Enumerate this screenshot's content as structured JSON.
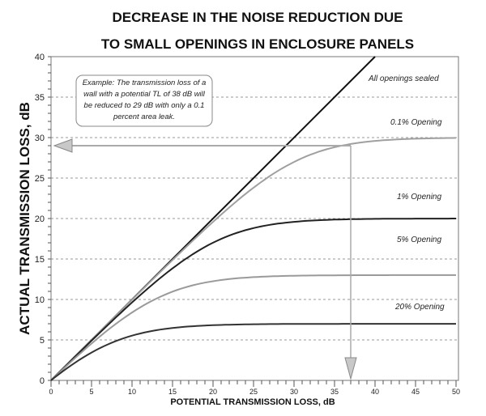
{
  "chart_data": {
    "type": "line",
    "title": [
      "DECREASE IN THE NOISE REDUCTION DUE",
      "TO SMALL OPENINGS IN ENCLOSURE PANELS"
    ],
    "xlabel": "POTENTIAL TRANSMISSION LOSS, dB",
    "ylabel": "ACTUAL TRANSMISSION LOSS, dB",
    "xlim": [
      0,
      50
    ],
    "ylim": [
      0,
      40
    ],
    "xticks": [
      0,
      5,
      10,
      15,
      20,
      25,
      30,
      35,
      40,
      45,
      50
    ],
    "yticks": [
      0,
      5,
      10,
      15,
      20,
      25,
      30,
      35,
      40
    ],
    "grid": "horizontal dashed at each y tick",
    "x": [
      0,
      5,
      10,
      15,
      20,
      25,
      30,
      35,
      40,
      45,
      50
    ],
    "series": [
      {
        "name": "All openings sealed",
        "color": "#111111",
        "x": [
          0,
          40
        ],
        "values": [
          0,
          40
        ]
      },
      {
        "name": "0.1% Opening",
        "color": "#a0a0a0",
        "values": [
          0,
          5.0,
          10.0,
          14.9,
          19.6,
          23.8,
          27.0,
          28.8,
          29.6,
          29.9,
          30.0
        ]
      },
      {
        "name": "1% Opening",
        "color": "#222222",
        "values": [
          0,
          4.9,
          9.6,
          13.8,
          17.0,
          18.8,
          19.6,
          19.9,
          20.0,
          20.0,
          20.0
        ]
      },
      {
        "name": "5% Opening",
        "color": "#9a9a9a",
        "values": [
          0,
          4.4,
          8.2,
          10.9,
          12.2,
          12.7,
          12.9,
          13.0,
          13.0,
          13.0,
          13.0
        ]
      },
      {
        "name": "20% Opening",
        "color": "#333333",
        "values": [
          0,
          2.9,
          5.2,
          6.4,
          6.8,
          6.9,
          7.0,
          7.0,
          7.0,
          7.0,
          7.0
        ]
      }
    ],
    "annotations": {
      "note_lines": [
        "Example:  The transmission loss of a",
        "wall with a potential TL of 38 dB will",
        "be reduced to 29 dB with only a 0.1",
        "percent area leak."
      ],
      "example_point": {
        "x": 37,
        "y": 29
      }
    },
    "colors": {
      "arrow": "#aaaaaa",
      "grid": "#999999"
    }
  }
}
